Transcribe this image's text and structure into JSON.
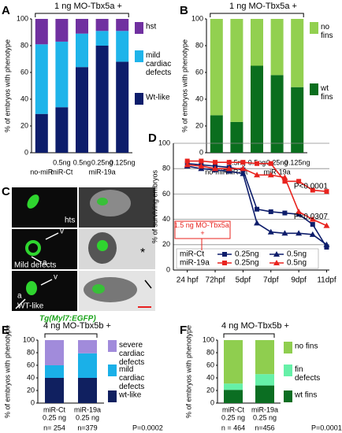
{
  "panel_labels": [
    "A",
    "B",
    "C",
    "D",
    "E",
    "F"
  ],
  "panel_c": {
    "rows": [
      {
        "label": "hts",
        "markers": []
      },
      {
        "label": "Mild defects",
        "markers": [
          "v",
          "a"
        ]
      },
      {
        "label": "WT-like",
        "markers": [
          "v",
          "a"
        ]
      }
    ],
    "asterisk": "*",
    "caption": "Tg(Myl7:EGFP)"
  },
  "chart_data": [
    {
      "type": "stacked_bar",
      "title": "1 ng MO-Tbx5a +",
      "y_label": "% of embryos with phenotype",
      "categories": [
        null,
        "0.5ng",
        "0.5ng",
        "0.25ng",
        "0.125ng"
      ],
      "groups": [
        {
          "label": "no-miR",
          "span": [
            0,
            0
          ]
        },
        {
          "label": "miR-Ct",
          "span": [
            1,
            1
          ]
        },
        {
          "label": "miR-19a",
          "span": [
            2,
            4
          ]
        }
      ],
      "series": [
        {
          "name": "Wt-like",
          "color": "#0d1d6b",
          "values": [
            29,
            34,
            64,
            80,
            68
          ]
        },
        {
          "name": "mild cardiac defects",
          "color": "#1fb4ea",
          "values": [
            52,
            49,
            25,
            11,
            23
          ]
        },
        {
          "name": "hst",
          "color": "#7030a0",
          "values": [
            19,
            17,
            11,
            9,
            9
          ]
        }
      ],
      "ylim": [
        0,
        100
      ],
      "yticks": [
        0,
        20,
        40,
        60,
        80,
        100
      ],
      "grid": false
    },
    {
      "type": "stacked_bar",
      "title": "1 ng MO-Tbx5a +",
      "y_label": "% of embryos with phenotype",
      "categories": [
        null,
        "0.5ng",
        "0.5ng",
        "0.25ng",
        "0.125ng"
      ],
      "groups": [
        {
          "label": "no-miR",
          "span": [
            0,
            0
          ]
        },
        {
          "label": "miR-Ct",
          "span": [
            1,
            1
          ]
        },
        {
          "label": "miR-19a",
          "span": [
            2,
            4
          ]
        }
      ],
      "series": [
        {
          "name": "wt fins",
          "color": "#0a6e1e",
          "values": [
            28,
            23,
            65,
            58,
            49
          ]
        },
        {
          "name": "no fins",
          "color": "#92d050",
          "values": [
            72,
            77,
            35,
            42,
            51
          ]
        }
      ],
      "ylim": [
        0,
        100
      ],
      "yticks": [
        0,
        20,
        40,
        60,
        80,
        100
      ],
      "grid": false
    },
    {
      "type": "line",
      "y_label": "% of surviving embryos",
      "x": [
        1,
        2,
        3,
        4,
        5,
        6,
        7,
        8,
        9,
        10,
        11
      ],
      "xlim": [
        0,
        11.2
      ],
      "xticks": [
        {
          "value": 1,
          "label": "24 hpf"
        },
        {
          "value": 3,
          "label": "72hpf"
        },
        {
          "value": 5,
          "label": "5dpf"
        },
        {
          "value": 7,
          "label": "7dpf"
        },
        {
          "value": 9,
          "label": "9dpf"
        },
        {
          "value": 11,
          "label": "11dpf"
        }
      ],
      "ylim": [
        0,
        100
      ],
      "yticks": [
        0,
        20,
        40,
        60,
        80,
        100
      ],
      "grid": true,
      "groups": [
        {
          "name": "miR-Ct",
          "series": [
            {
              "name": "0.25ng",
              "color": "#0d1d6b",
              "marker": "square",
              "values": [
                84,
                83,
                82,
                81,
                79,
                48,
                46,
                45,
                44,
                36,
                18
              ]
            },
            {
              "name": "0.5ng",
              "color": "#0d1d6b",
              "marker": "triangle",
              "values": [
                82,
                80,
                79,
                78,
                76,
                37,
                30,
                29,
                29,
                28,
                20
              ]
            }
          ]
        },
        {
          "name": "miR-19a",
          "series": [
            {
              "name": "0.25ng",
              "color": "#e8231e",
              "marker": "square",
              "values": [
                86,
                86,
                85,
                85,
                85,
                84,
                84,
                70,
                70,
                63,
                62
              ]
            },
            {
              "name": "0.5ng",
              "color": "#e8231e",
              "marker": "triangle",
              "values": [
                83,
                82,
                80,
                80,
                80,
                75,
                75,
                73,
                46,
                40,
                35
              ]
            }
          ]
        }
      ],
      "annotations": [
        "P<0.0001",
        "P=0.0307"
      ],
      "note": "1.5 ng MO-Tbx5a +"
    },
    {
      "type": "stacked_bar",
      "title": "4 ng MO-Tbx5b +",
      "y_label": "% of embryos with phenotype",
      "categories": [
        "miR-Ct",
        "miR-19a"
      ],
      "doses": [
        "0.25 ng",
        "0.25 ng"
      ],
      "n_labels": [
        "n= 254",
        "n=379"
      ],
      "p_value": "P=0.0002",
      "series": [
        {
          "name": "wt-like",
          "color": "#102060",
          "values": [
            40,
            40
          ]
        },
        {
          "name": "mild cardiac defects",
          "color": "#1ab0e8",
          "values": [
            20,
            39
          ]
        },
        {
          "name": "severe cardiac defects",
          "color": "#a18bdb",
          "values": [
            40,
            21
          ]
        }
      ],
      "ylim": [
        0,
        100
      ],
      "yticks": [
        0,
        20,
        40,
        60,
        80,
        100
      ],
      "grid": false
    },
    {
      "type": "stacked_bar",
      "title": "4 ng MO-Tbx5b +",
      "y_label": "% of embryos with phenotype",
      "categories": [
        "miR-Ct",
        "miR-19a"
      ],
      "doses": [
        "0.25 ng",
        "0.25 ng"
      ],
      "n_labels": [
        "n = 464",
        "n=456"
      ],
      "p_value": "P=0.0001",
      "series": [
        {
          "name": "wt fins",
          "color": "#0b6e22",
          "values": [
            21,
            28
          ]
        },
        {
          "name": "fin defects",
          "color": "#66f0a8",
          "values": [
            10,
            18
          ]
        },
        {
          "name": "no fins",
          "color": "#8fce4f",
          "values": [
            69,
            54
          ]
        }
      ],
      "ylim": [
        0,
        100
      ],
      "yticks": [
        0,
        20,
        40,
        60,
        80,
        100
      ],
      "grid": false
    }
  ]
}
